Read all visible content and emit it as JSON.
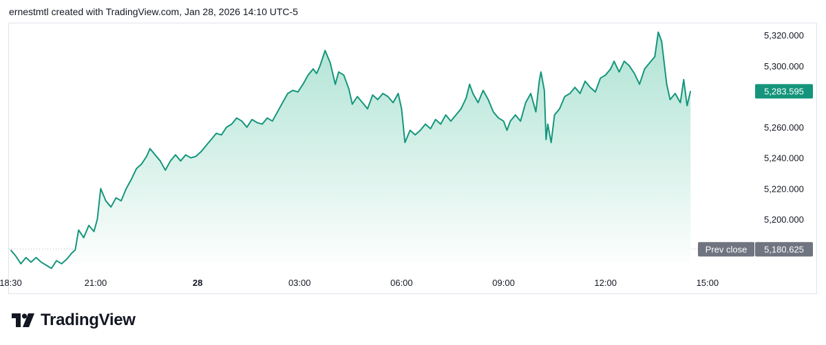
{
  "header": {
    "caption": "ernestmtl created with TradingView.com, Jan 28, 2026 14:10 UTC-5"
  },
  "brand": {
    "name": "TradingView"
  },
  "colors": {
    "line": "#14957b",
    "area_top": "#a7e0cf",
    "area_bottom": "#ffffff",
    "badge": "#14957b",
    "prev_close_badge": "#707480",
    "border": "#e0e3eb"
  },
  "chart_data": {
    "type": "area",
    "title": "",
    "xlabel": "",
    "ylabel": "",
    "ylim": [
      5170,
      5325
    ],
    "y_ticks": [
      5320,
      5300,
      5260,
      5240,
      5220,
      5200
    ],
    "y_tick_labels": [
      "5,320.000",
      "5,300.000",
      "5,260.000",
      "5,240.000",
      "5,220.000",
      "5,200.000"
    ],
    "x_ticks": [
      {
        "t": 0,
        "label": "18:30"
      },
      {
        "t": 2.5,
        "label": "21:00"
      },
      {
        "t": 5.5,
        "label": "28"
      },
      {
        "t": 8.5,
        "label": "03:00"
      },
      {
        "t": 11.5,
        "label": "06:00"
      },
      {
        "t": 14.5,
        "label": "09:00"
      },
      {
        "t": 17.5,
        "label": "12:00"
      },
      {
        "t": 20.5,
        "label": "15:00"
      }
    ],
    "xlim": [
      -0.05,
      21.9
    ],
    "last_price": 5283.595,
    "last_price_label": "5,283.595",
    "prev_close": 5180.625,
    "prev_close_label": "5,180.625",
    "prev_close_text": "Prev close",
    "series": [
      {
        "points": [
          [
            0,
            5180
          ],
          [
            0.15,
            5176
          ],
          [
            0.3,
            5171
          ],
          [
            0.45,
            5175
          ],
          [
            0.6,
            5172
          ],
          [
            0.75,
            5175
          ],
          [
            0.9,
            5172
          ],
          [
            1.05,
            5170
          ],
          [
            1.2,
            5168
          ],
          [
            1.35,
            5173
          ],
          [
            1.5,
            5171
          ],
          [
            1.65,
            5174
          ],
          [
            1.8,
            5178
          ],
          [
            1.9,
            5180
          ],
          [
            2.0,
            5193
          ],
          [
            2.15,
            5188
          ],
          [
            2.3,
            5196
          ],
          [
            2.45,
            5192
          ],
          [
            2.55,
            5200
          ],
          [
            2.65,
            5220
          ],
          [
            2.8,
            5212
          ],
          [
            2.95,
            5208
          ],
          [
            3.1,
            5214
          ],
          [
            3.25,
            5212
          ],
          [
            3.4,
            5220
          ],
          [
            3.55,
            5226
          ],
          [
            3.7,
            5233
          ],
          [
            3.85,
            5236
          ],
          [
            4.0,
            5241
          ],
          [
            4.1,
            5246
          ],
          [
            4.25,
            5242
          ],
          [
            4.4,
            5238
          ],
          [
            4.55,
            5232
          ],
          [
            4.7,
            5238
          ],
          [
            4.85,
            5242
          ],
          [
            5.0,
            5238
          ],
          [
            5.15,
            5242
          ],
          [
            5.3,
            5240
          ],
          [
            5.45,
            5241
          ],
          [
            5.6,
            5244
          ],
          [
            5.75,
            5248
          ],
          [
            5.9,
            5252
          ],
          [
            6.05,
            5256
          ],
          [
            6.2,
            5255
          ],
          [
            6.35,
            5260
          ],
          [
            6.5,
            5262
          ],
          [
            6.65,
            5266
          ],
          [
            6.8,
            5264
          ],
          [
            6.95,
            5260
          ],
          [
            7.1,
            5265
          ],
          [
            7.25,
            5263
          ],
          [
            7.4,
            5262
          ],
          [
            7.55,
            5266
          ],
          [
            7.7,
            5264
          ],
          [
            7.85,
            5270
          ],
          [
            8.0,
            5276
          ],
          [
            8.15,
            5282
          ],
          [
            8.3,
            5284
          ],
          [
            8.45,
            5283
          ],
          [
            8.6,
            5288
          ],
          [
            8.75,
            5294
          ],
          [
            8.9,
            5298
          ],
          [
            9.0,
            5295
          ],
          [
            9.1,
            5300
          ],
          [
            9.25,
            5310
          ],
          [
            9.4,
            5302
          ],
          [
            9.55,
            5288
          ],
          [
            9.65,
            5296
          ],
          [
            9.8,
            5294
          ],
          [
            9.95,
            5285
          ],
          [
            10.05,
            5275
          ],
          [
            10.2,
            5280
          ],
          [
            10.35,
            5276
          ],
          [
            10.5,
            5272
          ],
          [
            10.65,
            5281
          ],
          [
            10.8,
            5278
          ],
          [
            10.95,
            5282
          ],
          [
            11.1,
            5280
          ],
          [
            11.25,
            5276
          ],
          [
            11.4,
            5282
          ],
          [
            11.5,
            5272
          ],
          [
            11.6,
            5250
          ],
          [
            11.75,
            5258
          ],
          [
            11.9,
            5255
          ],
          [
            12.05,
            5258
          ],
          [
            12.2,
            5262
          ],
          [
            12.35,
            5259
          ],
          [
            12.5,
            5265
          ],
          [
            12.65,
            5262
          ],
          [
            12.8,
            5268
          ],
          [
            12.95,
            5264
          ],
          [
            13.1,
            5268
          ],
          [
            13.25,
            5272
          ],
          [
            13.4,
            5279
          ],
          [
            13.5,
            5288
          ],
          [
            13.6,
            5282
          ],
          [
            13.75,
            5276
          ],
          [
            13.9,
            5284
          ],
          [
            14.05,
            5278
          ],
          [
            14.2,
            5270
          ],
          [
            14.35,
            5266
          ],
          [
            14.5,
            5264
          ],
          [
            14.6,
            5258
          ],
          [
            14.7,
            5264
          ],
          [
            14.85,
            5268
          ],
          [
            15.0,
            5264
          ],
          [
            15.15,
            5276
          ],
          [
            15.3,
            5282
          ],
          [
            15.45,
            5270
          ],
          [
            15.55,
            5290
          ],
          [
            15.6,
            5296
          ],
          [
            15.7,
            5284
          ],
          [
            15.75,
            5252
          ],
          [
            15.8,
            5262
          ],
          [
            15.9,
            5250
          ],
          [
            16.0,
            5268
          ],
          [
            16.15,
            5272
          ],
          [
            16.3,
            5280
          ],
          [
            16.45,
            5282
          ],
          [
            16.6,
            5286
          ],
          [
            16.75,
            5282
          ],
          [
            16.9,
            5290
          ],
          [
            17.05,
            5286
          ],
          [
            17.2,
            5283
          ],
          [
            17.35,
            5292
          ],
          [
            17.5,
            5294
          ],
          [
            17.65,
            5298
          ],
          [
            17.75,
            5303
          ],
          [
            17.9,
            5296
          ],
          [
            18.05,
            5303
          ],
          [
            18.2,
            5300
          ],
          [
            18.35,
            5295
          ],
          [
            18.5,
            5288
          ],
          [
            18.65,
            5298
          ],
          [
            18.8,
            5302
          ],
          [
            18.95,
            5306
          ],
          [
            19.05,
            5322
          ],
          [
            19.15,
            5316
          ],
          [
            19.3,
            5288
          ],
          [
            19.4,
            5278
          ],
          [
            19.55,
            5282
          ],
          [
            19.7,
            5276
          ],
          [
            19.8,
            5291
          ],
          [
            19.9,
            5274
          ],
          [
            20.0,
            5283.6
          ]
        ]
      }
    ],
    "grid": false
  }
}
